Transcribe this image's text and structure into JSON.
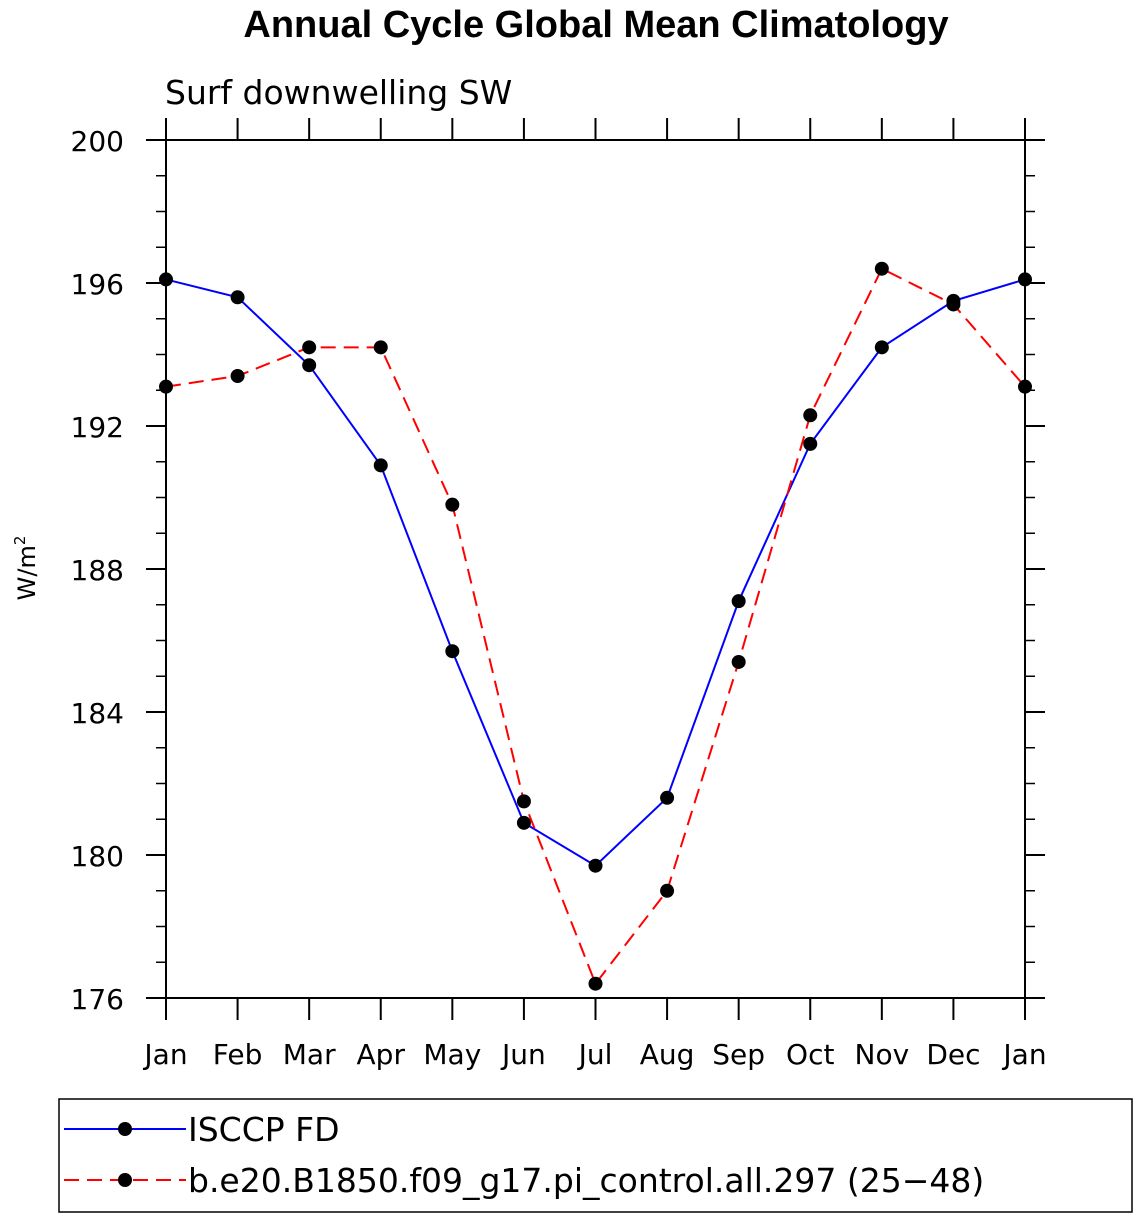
{
  "chart_data": {
    "type": "line",
    "title": "Annual Cycle Global Mean Climatology",
    "subtitle": "Surf downwelling SW",
    "ylabel": "W/m",
    "ylabel_sup": "2",
    "xlabel": "",
    "categories": [
      "Jan",
      "Feb",
      "Mar",
      "Apr",
      "May",
      "Jun",
      "Jul",
      "Aug",
      "Sep",
      "Oct",
      "Nov",
      "Dec",
      "Jan"
    ],
    "ylim": [
      176,
      200
    ],
    "yticks": [
      176,
      180,
      184,
      188,
      192,
      196,
      200
    ],
    "y_minor_step": 1,
    "grid": false,
    "legend_position": "bottom",
    "series": [
      {
        "name": "ISCCP FD",
        "color": "#0000ff",
        "dash": "solid",
        "marker": "filled-circle",
        "values": [
          196.1,
          195.6,
          193.7,
          190.9,
          185.7,
          180.9,
          179.7,
          181.6,
          187.1,
          191.5,
          194.2,
          195.5,
          196.1
        ]
      },
      {
        "name": "b.e20.B1850.f09_g17.pi_control.all.297 (25−48)",
        "color": "#ff0000",
        "dash": "dashed",
        "marker": "filled-circle",
        "values": [
          193.1,
          193.4,
          194.2,
          194.2,
          189.8,
          181.5,
          176.4,
          179.0,
          185.4,
          192.3,
          196.4,
          195.4,
          193.1
        ]
      }
    ]
  }
}
